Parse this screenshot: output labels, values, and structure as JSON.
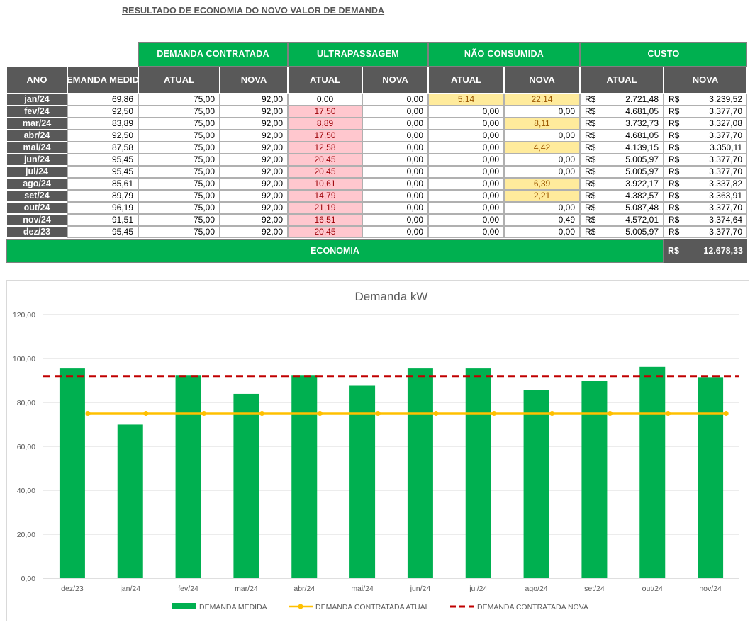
{
  "title": "RESULTADO DE ECONOMIA DO NOVO VALOR DE DEMANDA",
  "group_headers": {
    "demanda_contratada": "DEMANDA CONTRATADA",
    "ultrapassagem": "ULTRAPASSAGEM",
    "nao_consumida": "NÃO CONSUMIDA",
    "custo": "CUSTO"
  },
  "sub_headers": {
    "ano": "ANO",
    "demanda_medida": "DEMANDA MEDIDA",
    "atual": "ATUAL",
    "nova": "NOVA"
  },
  "currency": "R$",
  "rows": [
    {
      "ano": "jan/24",
      "medida": "69,86",
      "dc_atual": "75,00",
      "dc_nova": "92,00",
      "ul_atual": "0,00",
      "ul_nova": "0,00",
      "nc_atual": "5,14",
      "nc_nova": "22,14",
      "c_atual": "2.721,48",
      "c_nova": "3.239,52"
    },
    {
      "ano": "fev/24",
      "medida": "92,50",
      "dc_atual": "75,00",
      "dc_nova": "92,00",
      "ul_atual": "17,50",
      "ul_nova": "0,00",
      "nc_atual": "0,00",
      "nc_nova": "0,00",
      "c_atual": "4.681,05",
      "c_nova": "3.377,70"
    },
    {
      "ano": "mar/24",
      "medida": "83,89",
      "dc_atual": "75,00",
      "dc_nova": "92,00",
      "ul_atual": "8,89",
      "ul_nova": "0,00",
      "nc_atual": "0,00",
      "nc_nova": "8,11",
      "c_atual": "3.732,73",
      "c_nova": "3.327,08"
    },
    {
      "ano": "abr/24",
      "medida": "92,50",
      "dc_atual": "75,00",
      "dc_nova": "92,00",
      "ul_atual": "17,50",
      "ul_nova": "0,00",
      "nc_atual": "0,00",
      "nc_nova": "0,00",
      "c_atual": "4.681,05",
      "c_nova": "3.377,70"
    },
    {
      "ano": "mai/24",
      "medida": "87,58",
      "dc_atual": "75,00",
      "dc_nova": "92,00",
      "ul_atual": "12,58",
      "ul_nova": "0,00",
      "nc_atual": "0,00",
      "nc_nova": "4,42",
      "c_atual": "4.139,15",
      "c_nova": "3.350,11"
    },
    {
      "ano": "jun/24",
      "medida": "95,45",
      "dc_atual": "75,00",
      "dc_nova": "92,00",
      "ul_atual": "20,45",
      "ul_nova": "0,00",
      "nc_atual": "0,00",
      "nc_nova": "0,00",
      "c_atual": "5.005,97",
      "c_nova": "3.377,70"
    },
    {
      "ano": "jul/24",
      "medida": "95,45",
      "dc_atual": "75,00",
      "dc_nova": "92,00",
      "ul_atual": "20,45",
      "ul_nova": "0,00",
      "nc_atual": "0,00",
      "nc_nova": "0,00",
      "c_atual": "5.005,97",
      "c_nova": "3.377,70"
    },
    {
      "ano": "ago/24",
      "medida": "85,61",
      "dc_atual": "75,00",
      "dc_nova": "92,00",
      "ul_atual": "10,61",
      "ul_nova": "0,00",
      "nc_atual": "0,00",
      "nc_nova": "6,39",
      "c_atual": "3.922,17",
      "c_nova": "3.337,82"
    },
    {
      "ano": "set/24",
      "medida": "89,79",
      "dc_atual": "75,00",
      "dc_nova": "92,00",
      "ul_atual": "14,79",
      "ul_nova": "0,00",
      "nc_atual": "0,00",
      "nc_nova": "2,21",
      "c_atual": "4.382,57",
      "c_nova": "3.363,91"
    },
    {
      "ano": "out/24",
      "medida": "96,19",
      "dc_atual": "75,00",
      "dc_nova": "92,00",
      "ul_atual": "21,19",
      "ul_nova": "0,00",
      "nc_atual": "0,00",
      "nc_nova": "0,00",
      "c_atual": "5.087,48",
      "c_nova": "3.377,70"
    },
    {
      "ano": "nov/24",
      "medida": "91,51",
      "dc_atual": "75,00",
      "dc_nova": "92,00",
      "ul_atual": "16,51",
      "ul_nova": "0,00",
      "nc_atual": "0,00",
      "nc_nova": "0,49",
      "c_atual": "4.572,01",
      "c_nova": "3.374,64"
    },
    {
      "ano": "dez/23",
      "medida": "95,45",
      "dc_atual": "75,00",
      "dc_nova": "92,00",
      "ul_atual": "20,45",
      "ul_nova": "0,00",
      "nc_atual": "0,00",
      "nc_nova": "0,00",
      "c_atual": "5.005,97",
      "c_nova": "3.377,70"
    }
  ],
  "economia": {
    "label": "ECONOMIA",
    "currency": "R$",
    "value": "12.678,33"
  },
  "colors": {
    "green": "#00b050",
    "gray": "#595959",
    "pink": "#ffc7ce",
    "yellow": "#ffeb9c",
    "line_atual": "#ffc000",
    "line_nova": "#c00000"
  },
  "chart_data": {
    "type": "bar",
    "title": "Demanda kW",
    "categories": [
      "dez/23",
      "jan/24",
      "fev/24",
      "mar/24",
      "abr/24",
      "mai/24",
      "jun/24",
      "jul/24",
      "ago/24",
      "set/24",
      "out/24",
      "nov/24"
    ],
    "ylim": [
      0,
      120
    ],
    "yticks": [
      0,
      20,
      40,
      60,
      80,
      100,
      120
    ],
    "ytick_labels": [
      "0,00",
      "20,00",
      "40,00",
      "60,00",
      "80,00",
      "100,00",
      "120,00"
    ],
    "grid": true,
    "legend": "bottom",
    "series": [
      {
        "name": "DEMANDA MEDIDA",
        "type": "bar",
        "color": "#00b050",
        "values": [
          95.45,
          69.86,
          92.5,
          83.89,
          92.5,
          87.58,
          95.45,
          95.45,
          85.61,
          89.79,
          96.19,
          91.51
        ]
      },
      {
        "name": "DEMANDA CONTRATADA ATUAL",
        "type": "line",
        "color": "#ffc000",
        "values": [
          75,
          75,
          75,
          75,
          75,
          75,
          75,
          75,
          75,
          75,
          75,
          75
        ]
      },
      {
        "name": "DEMANDA CONTRATADA NOVA",
        "type": "dashed-line",
        "color": "#c00000",
        "values": [
          92,
          92,
          92,
          92,
          92,
          92,
          92,
          92,
          92,
          92,
          92,
          92
        ]
      }
    ]
  }
}
